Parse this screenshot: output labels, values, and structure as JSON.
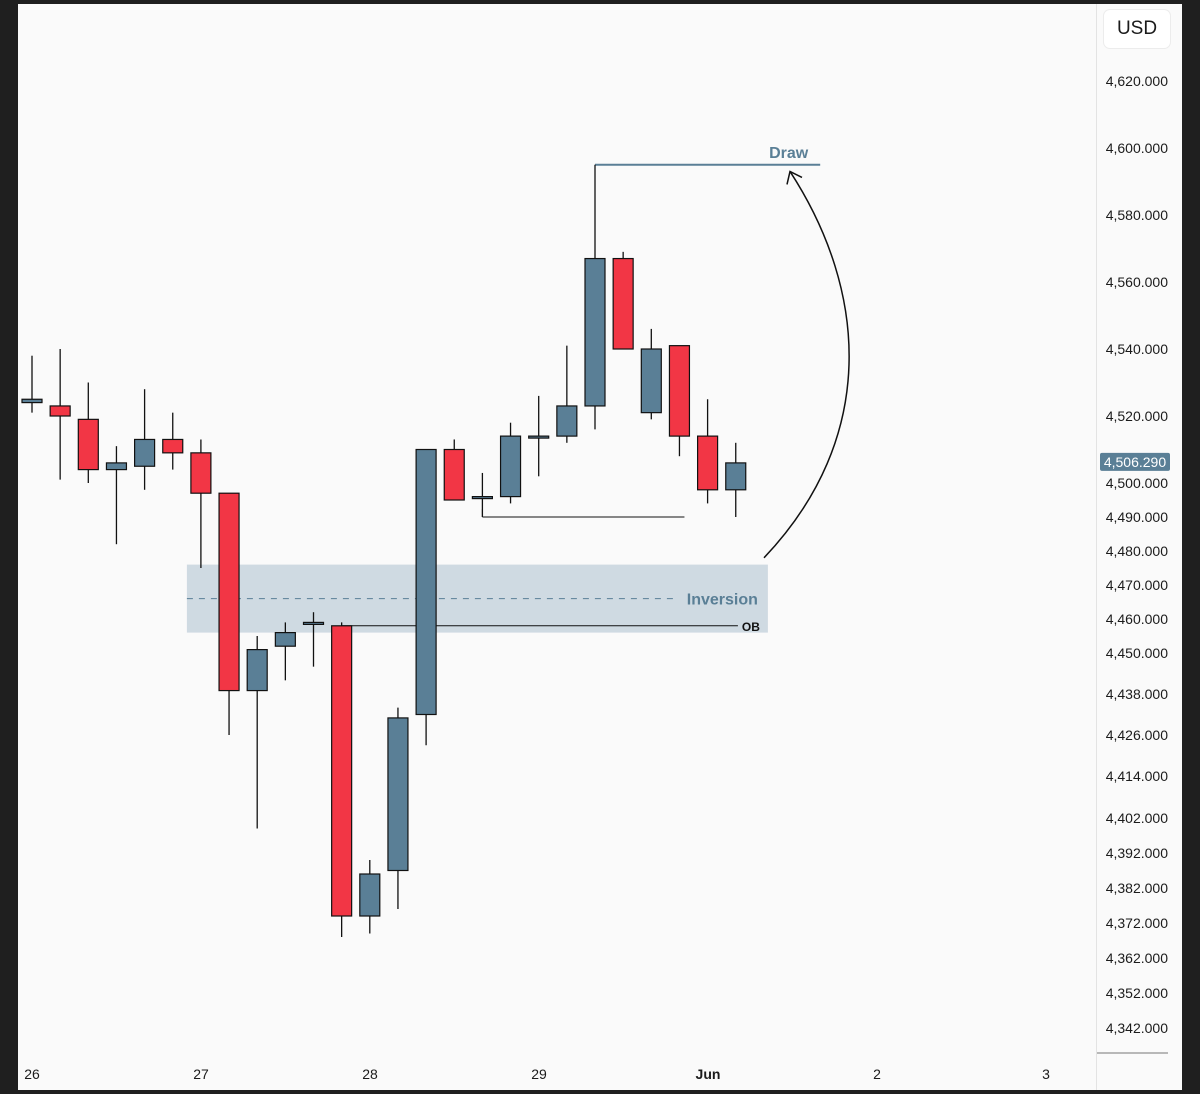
{
  "currency_label": "USD",
  "colors": {
    "bull": "#5a7f96",
    "bear": "#f23645",
    "wick": "#111111",
    "zone": "#ccd8e0",
    "label": "#5a7f96",
    "price_tag": "#5a7f96"
  },
  "chart_data": {
    "type": "candlestick",
    "y_axis": {
      "ticks": [
        "4,620.000",
        "4,600.000",
        "4,580.000",
        "4,560.000",
        "4,540.000",
        "4,520.000",
        "4,500.000",
        "4,490.000",
        "4,480.000",
        "4,470.000",
        "4,460.000",
        "4,450.000",
        "4,438.000",
        "4,426.000",
        "4,414.000",
        "4,402.000",
        "4,392.000",
        "4,382.000",
        "4,372.000",
        "4,362.000",
        "4,352.000",
        "4,342.000"
      ],
      "scale": "non-uniform"
    },
    "x_axis": {
      "ticks": [
        "26",
        "27",
        "28",
        "29",
        "Jun",
        "2",
        "3"
      ]
    },
    "last_price": "4,506.290",
    "candles": [
      {
        "o": 4524,
        "h": 4538,
        "l": 4521,
        "c": 4525
      },
      {
        "o": 4523,
        "h": 4540,
        "l": 4501,
        "c": 4520
      },
      {
        "o": 4519,
        "h": 4530,
        "l": 4500,
        "c": 4504
      },
      {
        "o": 4504,
        "h": 4511,
        "l": 4482,
        "c": 4506
      },
      {
        "o": 4505,
        "h": 4528,
        "l": 4498,
        "c": 4513
      },
      {
        "o": 4513,
        "h": 4521,
        "l": 4504,
        "c": 4509
      },
      {
        "o": 4509,
        "h": 4513,
        "l": 4475,
        "c": 4497
      },
      {
        "o": 4497,
        "h": 4497,
        "l": 4426,
        "c": 4439
      },
      {
        "o": 4439,
        "h": 4455,
        "l": 4399,
        "c": 4451
      },
      {
        "o": 4452,
        "h": 4459,
        "l": 4442,
        "c": 4456
      },
      {
        "o": 4459,
        "h": 4462,
        "l": 4446,
        "c": 4459
      },
      {
        "o": 4458,
        "h": 4459,
        "l": 4368,
        "c": 4374
      },
      {
        "o": 4374,
        "h": 4390,
        "l": 4369,
        "c": 4386
      },
      {
        "o": 4387,
        "h": 4434,
        "l": 4376,
        "c": 4431
      },
      {
        "o": 4432,
        "h": 4510,
        "l": 4423,
        "c": 4510
      },
      {
        "o": 4510,
        "h": 4513,
        "l": 4495,
        "c": 4495
      },
      {
        "o": 4496,
        "h": 4503,
        "l": 4490,
        "c": 4496
      },
      {
        "o": 4496,
        "h": 4518,
        "l": 4494,
        "c": 4514
      },
      {
        "o": 4514,
        "h": 4526,
        "l": 4502,
        "c": 4514
      },
      {
        "o": 4514,
        "h": 4541,
        "l": 4512,
        "c": 4523
      },
      {
        "o": 4523,
        "h": 4595,
        "l": 4516,
        "c": 4567
      },
      {
        "o": 4567,
        "h": 4569,
        "l": 4540,
        "c": 4540
      },
      {
        "o": 4521,
        "h": 4546,
        "l": 4519,
        "c": 4540
      },
      {
        "o": 4541,
        "h": 4541,
        "l": 4508,
        "c": 4514
      },
      {
        "o": 4514,
        "h": 4525,
        "l": 4494,
        "c": 4498
      },
      {
        "o": 4498,
        "h": 4512,
        "l": 4490,
        "c": 4506
      }
    ],
    "annotations": [
      {
        "type": "level",
        "label": "Draw",
        "price": 4595,
        "from_candle": 20,
        "to_candle": 28
      },
      {
        "type": "zone",
        "label": "Inversion",
        "top": 4476,
        "bottom": 4456,
        "from_candle": 6,
        "to_candle": 26
      },
      {
        "type": "level",
        "label": "OB",
        "price": 4458,
        "from_candle": 11,
        "to_candle": 26
      },
      {
        "type": "level",
        "label": "",
        "price": 4490,
        "from_candle": 16,
        "to_candle": 23
      },
      {
        "type": "arrow",
        "label": "",
        "from_price": 4478,
        "to_price": 4593
      }
    ]
  }
}
